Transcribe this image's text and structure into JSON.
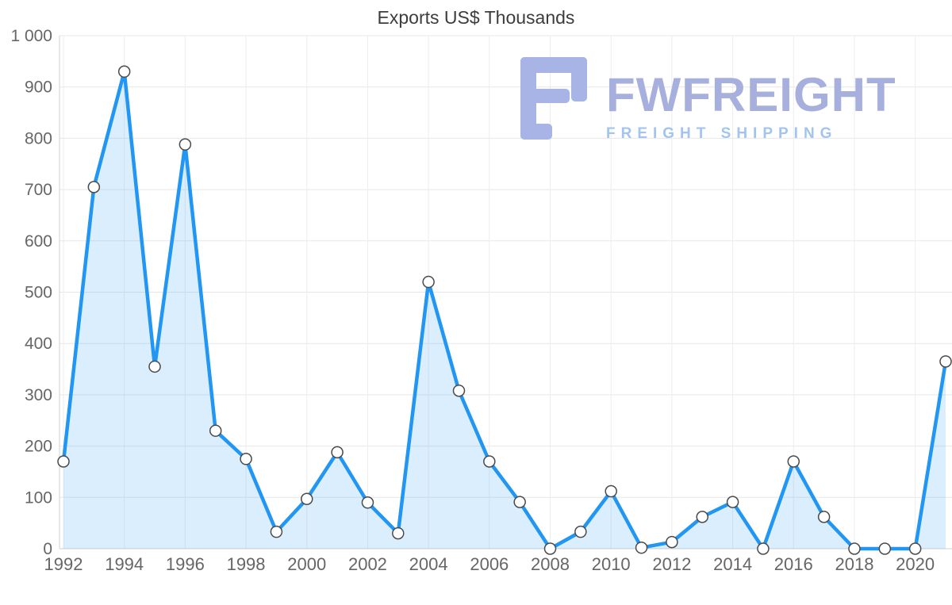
{
  "chart_data": {
    "type": "area",
    "title": "Exports US$ Thousands",
    "x": [
      1992,
      1993,
      1994,
      1995,
      1996,
      1997,
      1998,
      1999,
      2000,
      2001,
      2002,
      2003,
      2004,
      2005,
      2006,
      2007,
      2008,
      2009,
      2010,
      2011,
      2012,
      2013,
      2014,
      2015,
      2016,
      2017,
      2018,
      2019,
      2020,
      2021
    ],
    "series": [
      {
        "name": "Exports US$ Thousands",
        "values": [
          170,
          705,
          930,
          355,
          788,
          230,
          175,
          33,
          97,
          188,
          90,
          30,
          520,
          308,
          170,
          91,
          0,
          33,
          112,
          2,
          13,
          62,
          91,
          0,
          170,
          62,
          0,
          0,
          0,
          365
        ]
      }
    ],
    "ylim": [
      0,
      1000
    ],
    "y_ticks": [
      0,
      100,
      200,
      300,
      400,
      500,
      600,
      700,
      800,
      900,
      1000
    ],
    "y_tick_labels": [
      "0",
      "100",
      "200",
      "300",
      "400",
      "500",
      "600",
      "700",
      "800",
      "900",
      "1 000"
    ],
    "x_tick_years": [
      1992,
      1994,
      1996,
      1998,
      2000,
      2002,
      2004,
      2006,
      2008,
      2010,
      2012,
      2014,
      2016,
      2018,
      2020
    ],
    "grid": true,
    "legend": "none",
    "colors": {
      "line": "#2196f3",
      "fill": "rgba(33,150,243,0.16)",
      "marker_fill": "#ffffff",
      "marker_stroke": "#4a4a4a",
      "grid_h": "#e7e7e7",
      "grid_v": "#ededed",
      "axis": "#d2d2d2",
      "tick_text": "#666666",
      "title_text": "#3d3d3d"
    }
  },
  "watermark": {
    "brand": "FWFREIGHT",
    "tagline": "FREIGHT SHIPPING",
    "brand_color": "#a7b0dd",
    "tagline_color": "#a3c4ef",
    "icon_color": "#a9b4e6"
  }
}
